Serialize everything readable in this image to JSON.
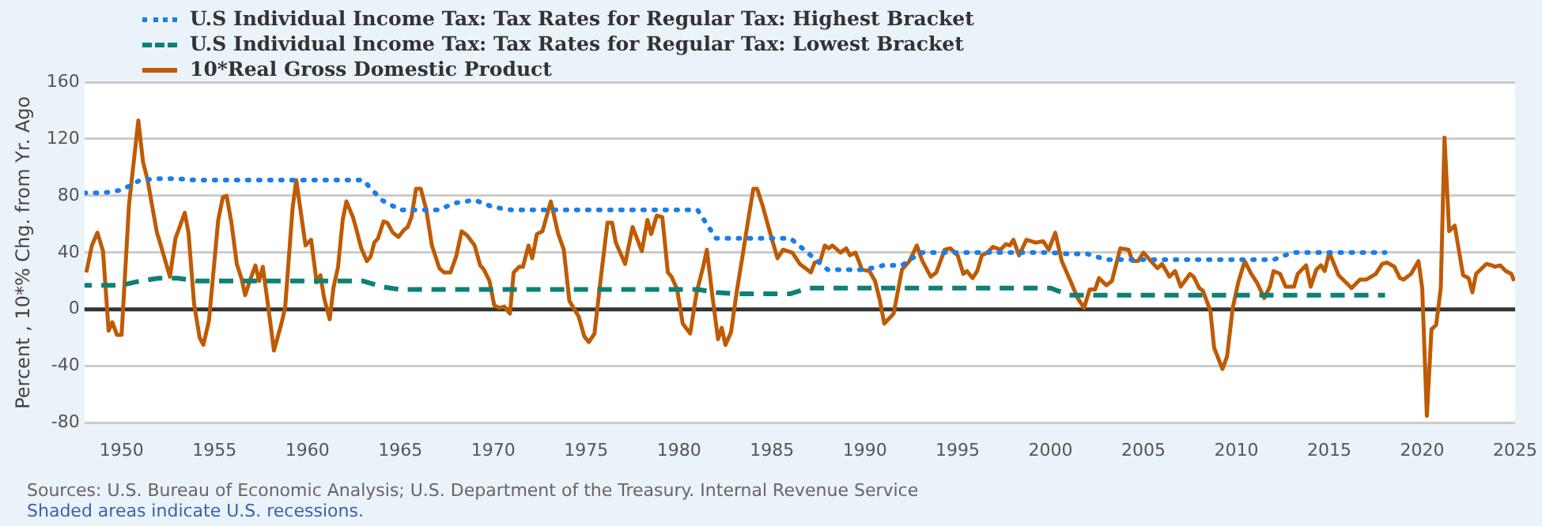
{
  "chart_data": {
    "type": "line",
    "ylabel": "Percent , 10*% Chg. from Yr. Ago",
    "annotations": [
      "Sources: U.S. Bureau of Economic Analysis; U.S. Department of the Treasury. Internal Revenue Service",
      "Shaded areas indicate U.S. recessions."
    ],
    "xlim": [
      1948,
      2025
    ],
    "xticks": [
      1950,
      1955,
      1960,
      1965,
      1970,
      1975,
      1980,
      1985,
      1990,
      1995,
      2000,
      2005,
      2010,
      2015,
      2020,
      2025
    ],
    "ylim": [
      -80,
      160
    ],
    "yticks": [
      -80,
      -40,
      0,
      40,
      80,
      120,
      160
    ],
    "grid": "y",
    "legend": "top left",
    "marker": "none",
    "ref_lines": [
      {
        "axis": "y",
        "value": 0,
        "color": "#333333"
      }
    ],
    "series": [
      {
        "name": "U.S Individual Income Tax: Tax Rates for Regular Tax: Highest Bracket",
        "color": "#1a7ee8",
        "line_style": "dotted",
        "x": [
          1948,
          1949,
          1950,
          1951,
          1952,
          1953,
          1954,
          1963,
          1964,
          1965,
          1967,
          1968,
          1969,
          1970,
          1971,
          1981,
          1982,
          1986,
          1987,
          1988,
          1990,
          1991,
          1992,
          1993,
          2000,
          2001,
          2002,
          2003,
          2012,
          2013,
          2018
        ],
        "values": [
          82,
          82,
          84,
          91,
          92,
          92,
          91,
          91,
          77,
          70,
          70,
          75,
          77,
          72,
          70,
          70,
          50,
          50,
          39,
          28,
          28,
          31,
          31,
          40,
          40,
          39,
          39,
          35,
          35,
          40,
          40
        ]
      },
      {
        "name": "U.S Individual Income Tax: Tax Rates for Regular Tax: Lowest Bracket",
        "color": "#0d8177",
        "line_style": "dashed",
        "x": [
          1948,
          1950,
          1951,
          1952,
          1953,
          1954,
          1963,
          1964,
          1965,
          1981,
          1982,
          1983,
          1986,
          1987,
          2000,
          2001,
          2018
        ],
        "values": [
          17,
          17,
          20,
          22,
          22,
          20,
          20,
          16,
          14,
          14,
          12,
          11,
          11,
          15,
          15,
          10,
          10
        ]
      },
      {
        "name": "10*Real Gross Domestic Product",
        "color": "#bf5b04",
        "line_style": "solid",
        "x": [
          1948.1,
          1948.4,
          1948.7,
          1949.0,
          1949.3,
          1949.5,
          1949.75,
          1950.0,
          1950.4,
          1950.9,
          1951.15,
          1951.4,
          1951.9,
          1952.0,
          1952.6,
          1952.9,
          1953.4,
          1953.6,
          1953.9,
          1954.2,
          1954.4,
          1954.7,
          1955.2,
          1955.45,
          1955.65,
          1955.9,
          1956.2,
          1956.45,
          1956.65,
          1956.9,
          1957.2,
          1957.4,
          1957.6,
          1957.9,
          1958.2,
          1958.6,
          1958.8,
          1959.2,
          1959.4,
          1959.9,
          1960.2,
          1960.5,
          1960.7,
          1960.9,
          1961.2,
          1961.4,
          1961.65,
          1961.9,
          1962.1,
          1962.45,
          1962.6,
          1962.9,
          1963.2,
          1963.4,
          1963.6,
          1963.8,
          1964.1,
          1964.3,
          1964.6,
          1964.9,
          1965.2,
          1965.4,
          1965.6,
          1965.85,
          1966.1,
          1966.4,
          1966.7,
          1967.1,
          1967.35,
          1967.7,
          1968.0,
          1968.3,
          1968.6,
          1969.0,
          1969.3,
          1969.5,
          1969.8,
          1970.05,
          1970.3,
          1970.6,
          1970.9,
          1971.1,
          1971.4,
          1971.6,
          1971.9,
          1972.1,
          1972.35,
          1972.65,
          1973.1,
          1973.5,
          1973.8,
          1974.1,
          1974.6,
          1974.9,
          1975.15,
          1975.45,
          1975.8,
          1976.15,
          1976.4,
          1976.6,
          1977.1,
          1977.5,
          1978.0,
          1978.3,
          1978.5,
          1978.8,
          1979.1,
          1979.4,
          1979.6,
          1979.9,
          1980.2,
          1980.6,
          1980.95,
          1981.3,
          1981.5,
          1981.8,
          1982.1,
          1982.3,
          1982.5,
          1982.8,
          1983.1,
          1983.4,
          1983.7,
          1984.0,
          1984.2,
          1984.5,
          1984.9,
          1985.3,
          1985.6,
          1986.1,
          1986.5,
          1987.1,
          1987.3,
          1987.6,
          1987.85,
          1988.05,
          1988.25,
          1988.7,
          1989.0,
          1989.2,
          1989.5,
          1989.85,
          1990.25,
          1990.55,
          1990.8,
          1991.05,
          1991.55,
          1992.0,
          1992.4,
          1992.8,
          1993.1,
          1993.55,
          1993.85,
          1994.3,
          1994.6,
          1995.0,
          1995.3,
          1995.5,
          1995.8,
          1996.05,
          1996.3,
          1996.6,
          1996.9,
          1997.3,
          1997.6,
          1997.8,
          1998.0,
          1998.3,
          1998.7,
          1999.2,
          1999.6,
          1999.9,
          2000.25,
          2000.6,
          2000.9,
          2001.1,
          2001.45,
          2001.8,
          2002.1,
          2002.4,
          2002.6,
          2003.0,
          2003.3,
          2003.75,
          2004.2,
          2004.4,
          2004.7,
          2005.0,
          2005.4,
          2005.75,
          2006.0,
          2006.4,
          2006.7,
          2007.0,
          2007.5,
          2007.7,
          2008.0,
          2008.2,
          2008.6,
          2008.8,
          2009.25,
          2009.5,
          2009.8,
          2010.1,
          2010.45,
          2010.8,
          2011.1,
          2011.5,
          2011.8,
          2012.0,
          2012.35,
          2012.65,
          2013.1,
          2013.3,
          2013.75,
          2014.0,
          2014.3,
          2014.55,
          2014.75,
          2015.0,
          2015.5,
          2016.2,
          2016.65,
          2017.0,
          2017.5,
          2017.85,
          2018.1,
          2018.5,
          2018.8,
          2019.0,
          2019.4,
          2019.8,
          2020.0,
          2020.25,
          2020.5,
          2020.75,
          2021.0,
          2021.2,
          2021.45,
          2021.75,
          2022.2,
          2022.5,
          2022.7,
          2022.9,
          2023.45,
          2023.75,
          2023.9,
          2024.2,
          2024.5,
          2024.8,
          2024.95
        ],
        "values": [
          26,
          45,
          54,
          41,
          -15,
          -9,
          -18,
          -18,
          74,
          133,
          104,
          91,
          54,
          50,
          23,
          50,
          68,
          54,
          4,
          -20,
          -25,
          -8,
          63,
          79,
          80,
          62,
          32,
          22,
          10,
          20,
          31,
          20,
          30,
          1,
          -29,
          -10,
          1,
          71,
          91,
          45,
          49,
          19,
          24,
          8,
          -7,
          15,
          30,
          63,
          76,
          65,
          58,
          43,
          34,
          37,
          47,
          50,
          62,
          61,
          54,
          51,
          56,
          58,
          65,
          85,
          85,
          70,
          45,
          29,
          26,
          26,
          37,
          55,
          52,
          45,
          31,
          28,
          20,
          3,
          1,
          2,
          -3,
          26,
          30,
          30,
          45,
          36,
          53,
          55,
          76,
          53,
          42,
          6,
          -5,
          -19,
          -23,
          -17,
          23,
          61,
          61,
          47,
          32,
          58,
          41,
          63,
          53,
          66,
          65,
          26,
          23,
          14,
          -10,
          -17,
          12,
          30,
          42,
          9,
          -21,
          -13,
          -25,
          -16,
          12,
          36,
          61,
          85,
          85,
          73,
          54,
          36,
          42,
          40,
          32,
          26,
          33,
          34,
          45,
          43,
          45,
          40,
          43,
          38,
          40,
          28,
          27,
          20,
          7,
          -10,
          -3,
          28,
          34,
          45,
          34,
          23,
          26,
          42,
          43,
          38,
          25,
          27,
          22,
          27,
          38,
          40,
          44,
          42,
          46,
          45,
          49,
          38,
          49,
          47,
          48,
          42,
          54,
          34,
          25,
          19,
          8,
          1,
          14,
          14,
          22,
          17,
          20,
          43,
          42,
          34,
          34,
          40,
          34,
          29,
          32,
          23,
          27,
          16,
          25,
          23,
          15,
          13,
          -1,
          -27,
          -42,
          -33,
          1,
          19,
          34,
          25,
          19,
          8,
          16,
          27,
          25,
          16,
          16,
          25,
          31,
          16,
          28,
          31,
          27,
          40,
          24,
          15,
          21,
          21,
          25,
          32,
          33,
          30,
          22,
          21,
          25,
          34,
          15,
          -75,
          -14,
          -11,
          15,
          121,
          55,
          59,
          24,
          22,
          12,
          25,
          32,
          31,
          30,
          31,
          27,
          25,
          20
        ]
      }
    ]
  }
}
